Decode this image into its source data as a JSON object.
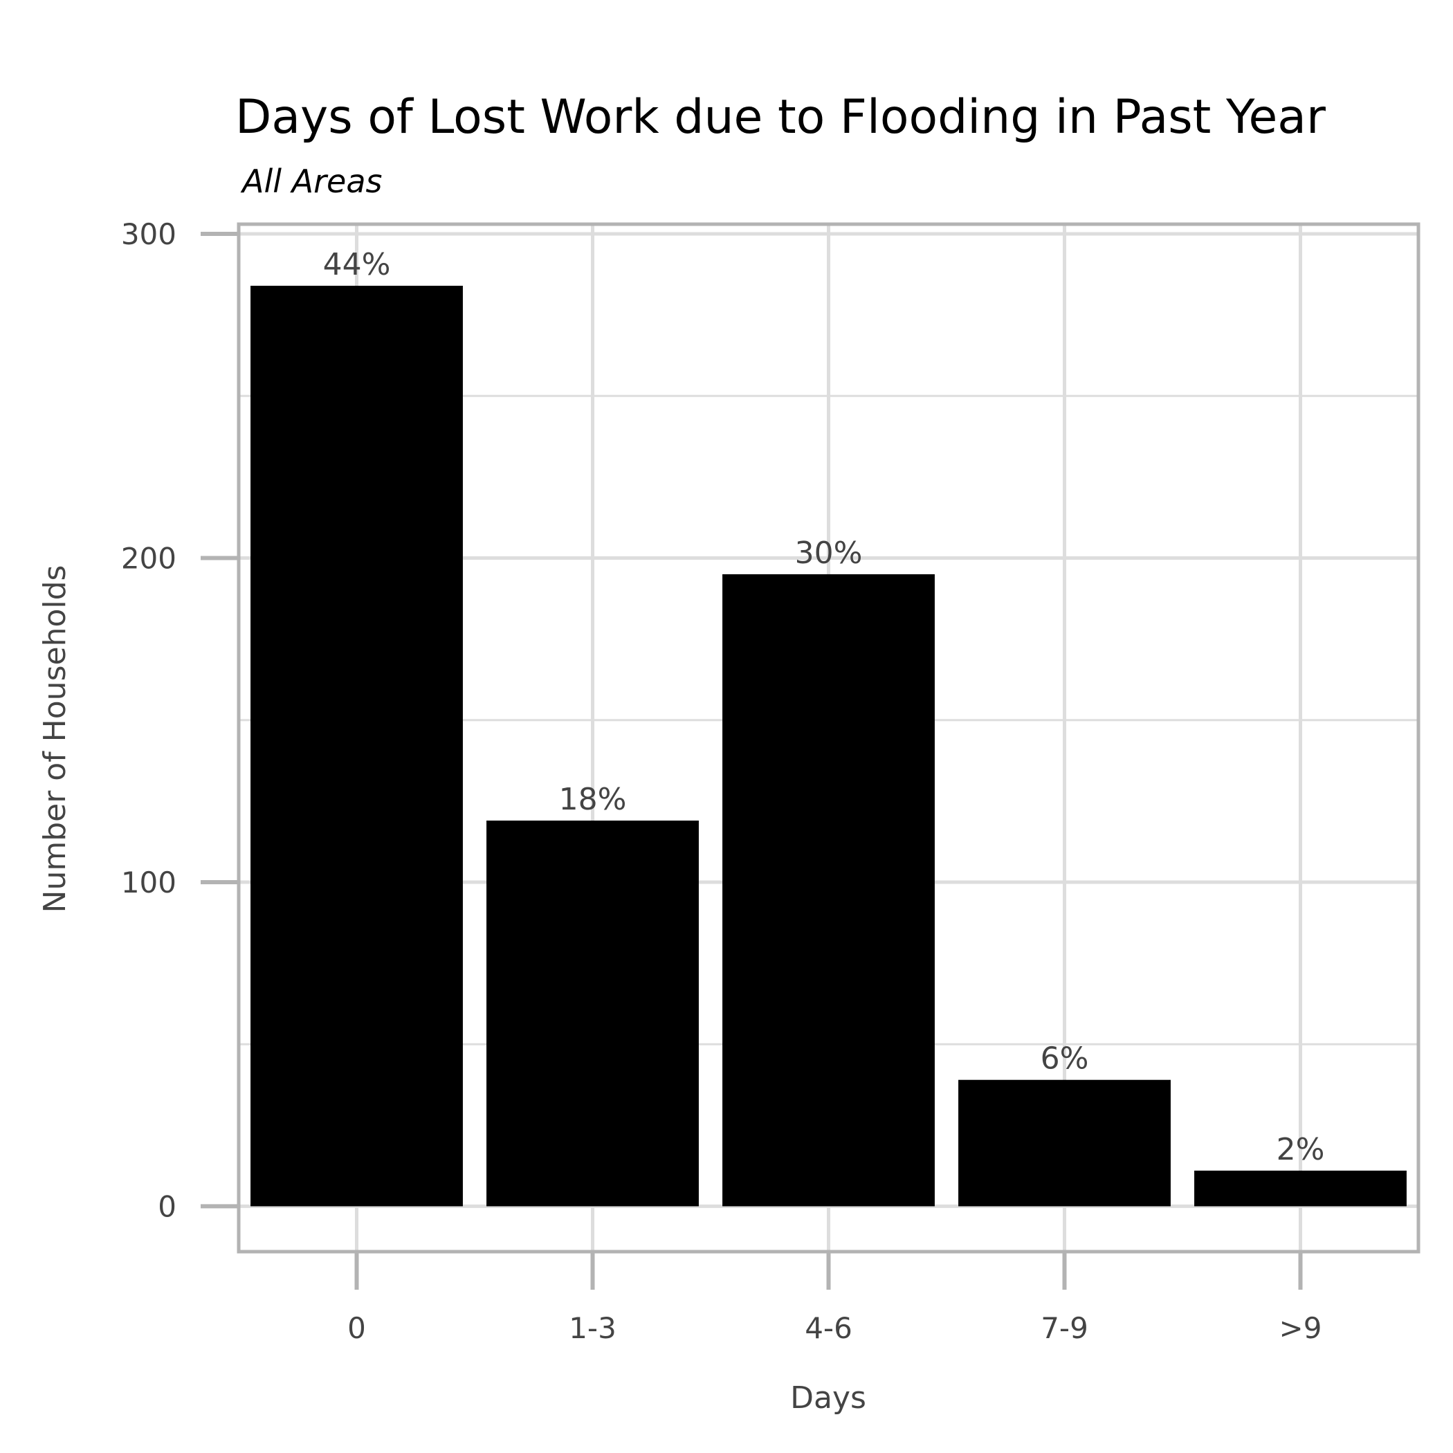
{
  "chart_data": {
    "type": "bar",
    "title": "Days of Lost Work due to Flooding in Past Year",
    "subtitle": "All Areas",
    "xlabel": "Days",
    "ylabel": "Number of Households",
    "categories": [
      "0",
      "1-3",
      "4-6",
      "7-9",
      ">9"
    ],
    "values": [
      284,
      119,
      195,
      39,
      11
    ],
    "data_labels": [
      "44%",
      "18%",
      "30%",
      "6%",
      "2%"
    ],
    "ylim": [
      -14,
      303
    ],
    "yticks": [
      0,
      100,
      200,
      300
    ],
    "grid": true,
    "legend": "none",
    "colors": {
      "bar": "#000000",
      "grid": "#dddddd",
      "border": "#b3b3b3",
      "text": "#444444"
    }
  }
}
